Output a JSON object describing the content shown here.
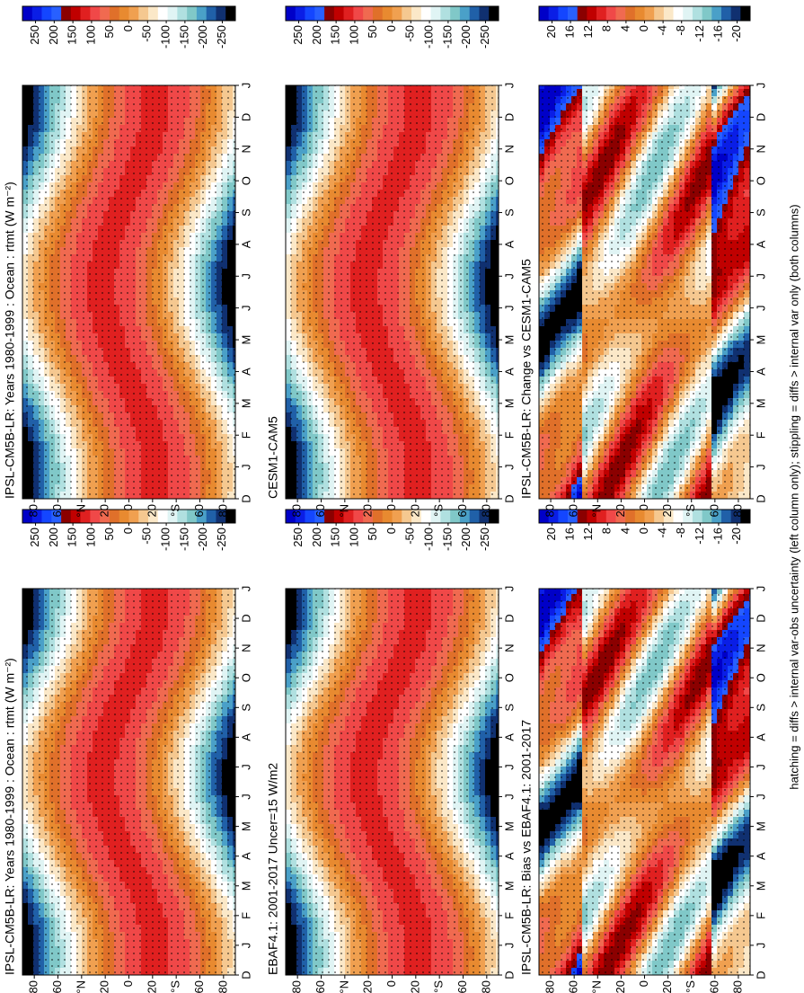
{
  "chart_data": [
    {
      "type": "contour",
      "title": "IPSL-CM5B-LR: Years 1980-1999 : Ocean : rtmt (W m⁻²)",
      "categories": [
        "D",
        "J",
        "F",
        "M",
        "A",
        "M",
        "J",
        "J",
        "A",
        "S",
        "O",
        "N",
        "D",
        "J"
      ],
      "ylim": [
        90,
        -90
      ],
      "yticks": [
        80,
        60,
        {
          "value": 40,
          "label": "°N"
        },
        20,
        0,
        {
          "value": -20,
          "label": "20"
        },
        {
          "value": -40,
          "label": "°S"
        },
        {
          "value": -60,
          "label": "60"
        },
        {
          "value": -80,
          "label": "80"
        }
      ],
      "colorbar": {
        "lim": [
          285,
          -285
        ],
        "ticks": [
          250,
          200,
          150,
          100,
          50,
          0,
          -50,
          -100,
          -150,
          -200,
          -250
        ]
      }
    },
    {
      "type": "contour",
      "title": "IPSL-CM5B-LR: Years 1980-1999 : Ocean : rtmt (W m⁻²)",
      "categories": [
        "D",
        "J",
        "F",
        "M",
        "A",
        "M",
        "J",
        "J",
        "A",
        "S",
        "O",
        "N",
        "D",
        "J"
      ],
      "ylim": [
        90,
        -90
      ],
      "yticks": [
        80,
        60,
        {
          "value": 40,
          "label": "°N"
        },
        20,
        0,
        {
          "value": -20,
          "label": "20"
        },
        {
          "value": -40,
          "label": "°S"
        },
        {
          "value": -60,
          "label": "60"
        },
        {
          "value": -80,
          "label": "80"
        }
      ],
      "colorbar": {
        "lim": [
          285,
          -285
        ],
        "ticks": [
          250,
          200,
          150,
          100,
          50,
          0,
          -50,
          -100,
          -150,
          -200,
          -250
        ]
      }
    },
    {
      "type": "contour",
      "title": "EBAF4.1: 2001-2017 Uncer=15 W/m2",
      "categories": [
        "D",
        "J",
        "F",
        "M",
        "A",
        "M",
        "J",
        "J",
        "A",
        "S",
        "O",
        "N",
        "D",
        "J"
      ],
      "ylim": [
        90,
        -90
      ],
      "yticks": [
        80,
        60,
        {
          "value": 40,
          "label": "°N"
        },
        20,
        0,
        {
          "value": -20,
          "label": "20"
        },
        {
          "value": -40,
          "label": "°S"
        },
        {
          "value": -60,
          "label": "60"
        },
        {
          "value": -80,
          "label": "80"
        }
      ],
      "colorbar": {
        "lim": [
          285,
          -285
        ],
        "ticks": [
          250,
          200,
          150,
          100,
          50,
          0,
          -50,
          -100,
          -150,
          -200,
          -250
        ]
      }
    },
    {
      "type": "contour",
      "title": "CESM1-CAM5",
      "categories": [
        "D",
        "J",
        "F",
        "M",
        "A",
        "M",
        "J",
        "J",
        "A",
        "S",
        "O",
        "N",
        "D",
        "J"
      ],
      "ylim": [
        90,
        -90
      ],
      "yticks": [
        80,
        60,
        {
          "value": 40,
          "label": "°N"
        },
        20,
        0,
        {
          "value": -20,
          "label": "20"
        },
        {
          "value": -40,
          "label": "°S"
        },
        {
          "value": -60,
          "label": "60"
        },
        {
          "value": -80,
          "label": "80"
        }
      ],
      "colorbar": {
        "lim": [
          285,
          -285
        ],
        "ticks": [
          250,
          200,
          150,
          100,
          50,
          0,
          -50,
          -100,
          -150,
          -200,
          -250
        ]
      }
    },
    {
      "type": "contour",
      "title": "IPSL-CM5B-LR: Bias vs EBAF4.1: 2001-2017",
      "categories": [
        "D",
        "J",
        "F",
        "M",
        "A",
        "M",
        "J",
        "J",
        "A",
        "S",
        "O",
        "N",
        "D",
        "J"
      ],
      "ylim": [
        90,
        -90
      ],
      "yticks": [
        80,
        60,
        {
          "value": 40,
          "label": "°N"
        },
        20,
        0,
        {
          "value": -20,
          "label": "20"
        },
        {
          "value": -40,
          "label": "°S"
        },
        {
          "value": -60,
          "label": "60"
        },
        {
          "value": -80,
          "label": "80"
        }
      ],
      "colorbar": {
        "lim": [
          22.8,
          -22.8
        ],
        "ticks": [
          20,
          16,
          12,
          8,
          4,
          0,
          -4,
          -8,
          -12,
          -16,
          -20
        ]
      }
    },
    {
      "type": "contour",
      "title": "IPSL-CM5B-LR: Change vs CESM1-CAM5",
      "categories": [
        "D",
        "J",
        "F",
        "M",
        "A",
        "M",
        "J",
        "J",
        "A",
        "S",
        "O",
        "N",
        "D",
        "J"
      ],
      "ylim": [
        90,
        -90
      ],
      "yticks": [
        80,
        60,
        {
          "value": 40,
          "label": "°N"
        },
        20,
        0,
        {
          "value": -20,
          "label": "20"
        },
        {
          "value": -40,
          "label": "°S"
        },
        {
          "value": -60,
          "label": "60"
        },
        {
          "value": -80,
          "label": "80"
        }
      ],
      "colorbar": {
        "lim": [
          22.8,
          -22.8
        ],
        "ticks": [
          20,
          16,
          12,
          8,
          4,
          0,
          -4,
          -8,
          -12,
          -16,
          -20
        ]
      }
    }
  ],
  "colorbar_colors": [
    "#0000c8",
    "#0a1ee6",
    "#1446ff",
    "#2860ff",
    "#8b0000",
    "#c00000",
    "#e02020",
    "#f04848",
    "#f06a50",
    "#e0702a",
    "#e88a30",
    "#f0a050",
    "#f5c890",
    "#fbe8c8",
    "#ffffff",
    "#e0f4f4",
    "#b0e0e0",
    "#80c8c8",
    "#4aa0c8",
    "#2060a8",
    "#103070",
    "#000000"
  ],
  "caption": "hatching = diffs > internal var-obs uncertainty (left column only); stippling = diffs > internal var only (both columns)"
}
